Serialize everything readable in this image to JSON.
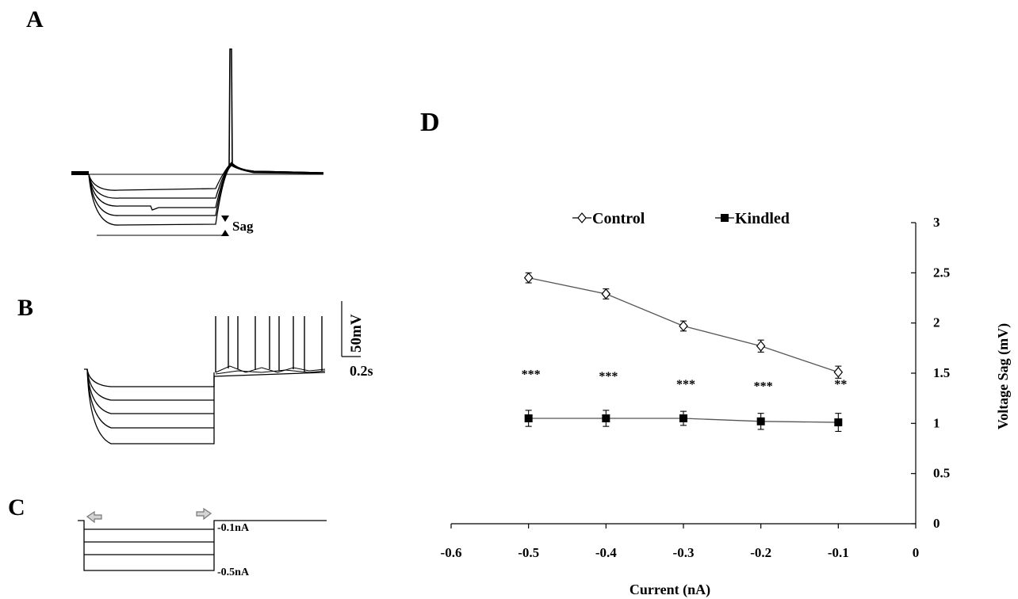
{
  "panels": {
    "a": {
      "letter": "A",
      "sag_label": "Sag"
    },
    "b": {
      "letter": "B",
      "scale_v": "50mV",
      "scale_t": "0.2s"
    },
    "c": {
      "letter": "C",
      "label_top": "-0.1nA",
      "label_bottom": "-0.5nA"
    },
    "d": {
      "letter": "D"
    }
  },
  "chart_data": {
    "type": "line",
    "xlabel": "Current (nA)",
    "ylabel": "Voltage Sag (mV)",
    "xlim": [
      -0.6,
      0
    ],
    "ylim": [
      0,
      3
    ],
    "x_ticks": [
      "-0.6",
      "-0.5",
      "-0.4",
      "-0.3",
      "-0.2",
      "-0.1",
      "0"
    ],
    "y_ticks": [
      "0",
      "0.5",
      "1",
      "1.5",
      "2",
      "2.5",
      "3"
    ],
    "y_axis_side": "right",
    "legend_position": "top",
    "grid": false,
    "x": [
      -0.5,
      -0.4,
      -0.3,
      -0.2,
      -0.1
    ],
    "series": [
      {
        "name": "Control",
        "marker": "open-diamond",
        "color": "#000000",
        "values": [
          2.45,
          2.29,
          1.97,
          1.77,
          1.51
        ],
        "errors": [
          0.05,
          0.05,
          0.05,
          0.06,
          0.06
        ]
      },
      {
        "name": "Kindled",
        "marker": "filled-square",
        "color": "#000000",
        "values": [
          1.05,
          1.05,
          1.05,
          1.02,
          1.01
        ],
        "errors": [
          0.08,
          0.08,
          0.07,
          0.08,
          0.09
        ]
      }
    ],
    "annotations": [
      "***",
      "***",
      "***",
      "***",
      "**"
    ],
    "annotation_y": [
      1.45,
      1.43,
      1.35,
      1.33,
      1.35
    ]
  }
}
